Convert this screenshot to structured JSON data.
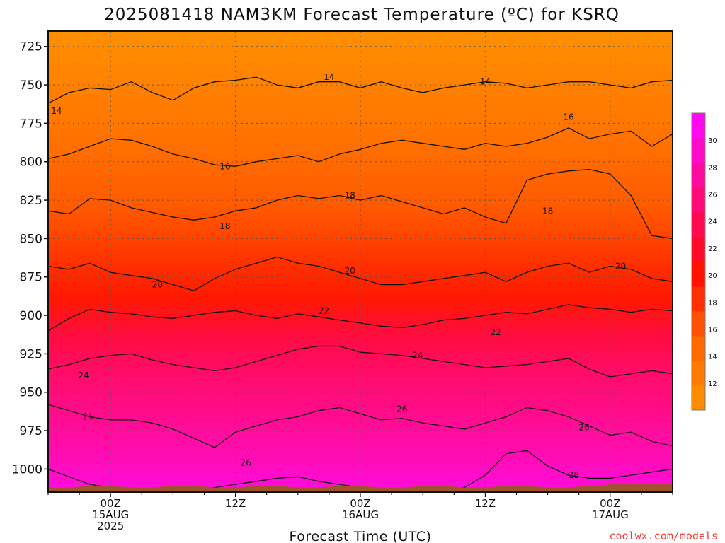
{
  "title": "2025081418 NAM3KM Forecast Temperature (ºC) for KSRQ",
  "xlabel": "Forecast Time (UTC)",
  "credit": "coolwx.com/models",
  "colors": {
    "ground": "#a0522d",
    "contour": "#111111",
    "grid": "#555555"
  },
  "chart_data": {
    "type": "heatmap",
    "title": "2025081418 NAM3KM Forecast Temperature (ºC) for KSRQ",
    "xlabel": "Forecast Time (UTC)",
    "ylabel": "",
    "y_axis": "pressure (hPa), increasing downward",
    "ylim": [
      1015,
      715
    ],
    "xlim_hours": [
      -6,
      54
    ],
    "yticks": [
      725,
      750,
      775,
      800,
      825,
      850,
      875,
      900,
      925,
      950,
      975,
      1000
    ],
    "xticks": [
      {
        "hour": 0,
        "lines": [
          "00Z",
          "15AUG",
          "2025"
        ]
      },
      {
        "hour": 12,
        "lines": [
          "12Z"
        ]
      },
      {
        "hour": 24,
        "lines": [
          "00Z",
          "16AUG"
        ]
      },
      {
        "hour": 36,
        "lines": [
          "12Z"
        ]
      },
      {
        "hour": 48,
        "lines": [
          "00Z",
          "17AUG"
        ]
      }
    ],
    "colorbar": {
      "ticks": [
        12,
        14,
        16,
        18,
        20,
        22,
        24,
        26,
        28,
        30
      ],
      "levels": [
        10,
        12,
        14,
        16,
        18,
        20,
        22,
        24,
        26,
        28,
        30,
        32
      ],
      "colors": [
        "#ff8c00",
        "#ff7a00",
        "#ff6a00",
        "#ff5000",
        "#ff3000",
        "#ff1400",
        "#ff0a28",
        "#ff0a50",
        "#ff0a78",
        "#ff0aa0",
        "#ff0ac8",
        "#ff0af0"
      ]
    },
    "contours": [
      {
        "value": 14,
        "pressure": [
          762,
          755,
          752,
          753,
          748,
          755,
          760,
          752,
          748,
          747,
          745,
          750,
          752,
          748,
          748,
          752,
          748,
          752,
          755,
          752,
          750,
          748,
          749,
          752,
          750,
          748,
          748,
          750,
          752,
          748,
          747
        ],
        "labels": [
          {
            "hour": -5.2,
            "pressure": 767
          },
          {
            "hour": 21,
            "pressure": 745
          },
          {
            "hour": 36,
            "pressure": 748
          }
        ]
      },
      {
        "value": 16,
        "pressure": [
          798,
          795,
          790,
          785,
          786,
          790,
          795,
          798,
          802,
          803,
          800,
          798,
          796,
          800,
          795,
          792,
          788,
          786,
          788,
          790,
          792,
          788,
          790,
          788,
          784,
          778,
          785,
          782,
          780,
          790,
          782
        ],
        "labels": [
          {
            "hour": 11,
            "pressure": 803
          },
          {
            "hour": 44,
            "pressure": 771
          }
        ]
      },
      {
        "value": 18,
        "pressure": [
          832,
          834,
          824,
          825,
          830,
          833,
          836,
          838,
          836,
          832,
          830,
          825,
          822,
          824,
          822,
          825,
          822,
          826,
          830,
          834,
          830,
          836,
          840,
          812,
          808,
          806,
          805,
          808,
          822,
          848,
          850
        ],
        "labels": [
          {
            "hour": 11,
            "pressure": 842
          },
          {
            "hour": 23,
            "pressure": 822
          },
          {
            "hour": 42,
            "pressure": 832
          }
        ]
      },
      {
        "value": 20,
        "pressure": [
          868,
          870,
          866,
          872,
          874,
          876,
          880,
          884,
          876,
          870,
          866,
          862,
          866,
          868,
          872,
          876,
          880,
          880,
          878,
          876,
          874,
          872,
          878,
          872,
          868,
          866,
          872,
          868,
          870,
          876,
          878
        ],
        "labels": [
          {
            "hour": 4.5,
            "pressure": 880
          },
          {
            "hour": 23,
            "pressure": 871
          },
          {
            "hour": 49,
            "pressure": 868
          }
        ]
      },
      {
        "value": 22,
        "pressure": [
          910,
          902,
          896,
          898,
          899,
          901,
          902,
          900,
          898,
          897,
          900,
          902,
          899,
          901,
          903,
          905,
          907,
          908,
          906,
          903,
          902,
          900,
          898,
          899,
          896,
          893,
          895,
          896,
          898,
          896,
          897
        ],
        "labels": [
          {
            "hour": 20.5,
            "pressure": 897
          },
          {
            "hour": 37,
            "pressure": 911
          }
        ]
      },
      {
        "value": 24,
        "pressure": [
          935,
          932,
          928,
          926,
          925,
          929,
          932,
          934,
          936,
          934,
          930,
          926,
          922,
          920,
          920,
          924,
          925,
          926,
          928,
          930,
          932,
          934,
          933,
          932,
          930,
          928,
          935,
          940,
          938,
          936,
          938
        ],
        "labels": [
          {
            "hour": -2.6,
            "pressure": 939
          },
          {
            "hour": 29.5,
            "pressure": 926
          }
        ]
      },
      {
        "value": 26,
        "pressure": [
          958,
          962,
          966,
          968,
          968,
          970,
          974,
          980,
          986,
          976,
          972,
          968,
          966,
          962,
          960,
          964,
          968,
          967,
          970,
          972,
          974,
          970,
          966,
          960,
          962,
          966,
          972,
          978,
          976,
          982,
          985
        ],
        "labels": [
          {
            "hour": -2.2,
            "pressure": 966
          },
          {
            "hour": 13,
            "pressure": 996
          },
          {
            "hour": 28,
            "pressure": 961
          },
          {
            "hour": 45.5,
            "pressure": 973
          }
        ]
      },
      {
        "value": 28,
        "pressure": [
          1000,
          1005,
          1010,
          1012,
          1013,
          1014,
          1014,
          1013,
          1012,
          1010,
          1008,
          1006,
          1005,
          1008,
          1010,
          1012,
          1013,
          1013,
          1014,
          1014,
          1012,
          1004,
          990,
          988,
          998,
          1004,
          1006,
          1006,
          1004,
          1002,
          1000
        ],
        "labels": [
          {
            "hour": 44.5,
            "pressure": 1004
          }
        ]
      }
    ],
    "contour_hours_step": 2,
    "contour_hours_start": -6,
    "surface_pressure": [
      1012,
      1012,
      1011,
      1011,
      1012,
      1012,
      1011,
      1011,
      1012,
      1012,
      1011,
      1011,
      1012,
      1012,
      1011,
      1011,
      1012,
      1012,
      1011,
      1011,
      1012,
      1012,
      1011,
      1011,
      1012,
      1012,
      1011,
      1010,
      1010,
      1010,
      1010
    ],
    "grid": true
  }
}
